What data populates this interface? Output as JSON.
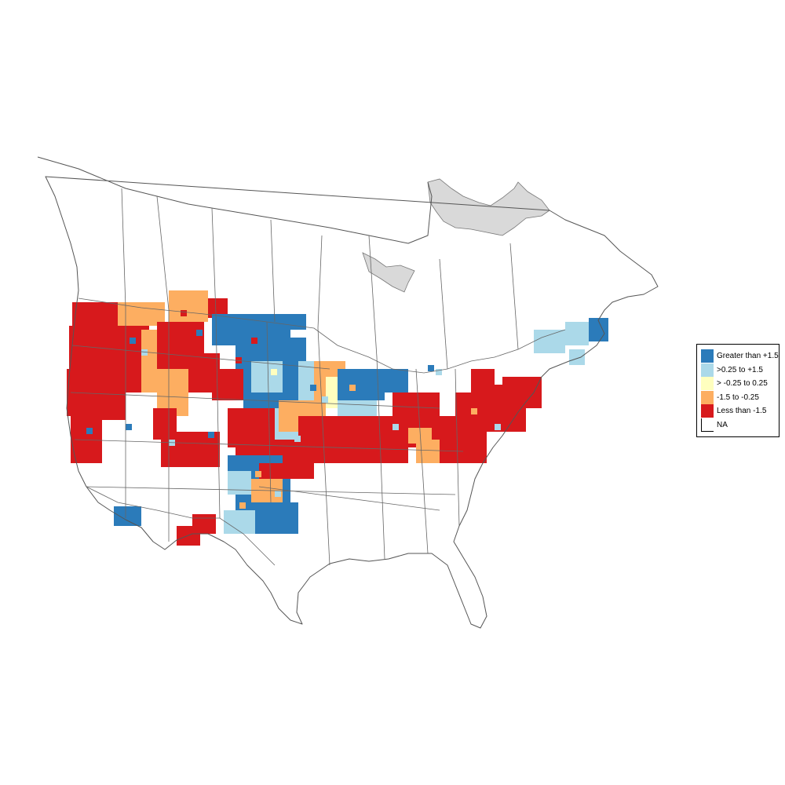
{
  "legend": {
    "items": [
      {
        "label": "Greater than +1.5",
        "color": "#2b7bba"
      },
      {
        "label": ">0.25 to +1.5",
        "color": "#abd9e9"
      },
      {
        "label": "> -0.25 to 0.25",
        "color": "#ffffbf"
      },
      {
        "label": "-1.5 to -0.25",
        "color": "#fdae61"
      },
      {
        "label": "Less than -1.5",
        "color": "#d7191c"
      },
      {
        "label": "NA",
        "color": "#ffffff"
      }
    ]
  },
  "map": {
    "na_region_color": "#d9d9d9",
    "boundary_color": "#555555"
  }
}
